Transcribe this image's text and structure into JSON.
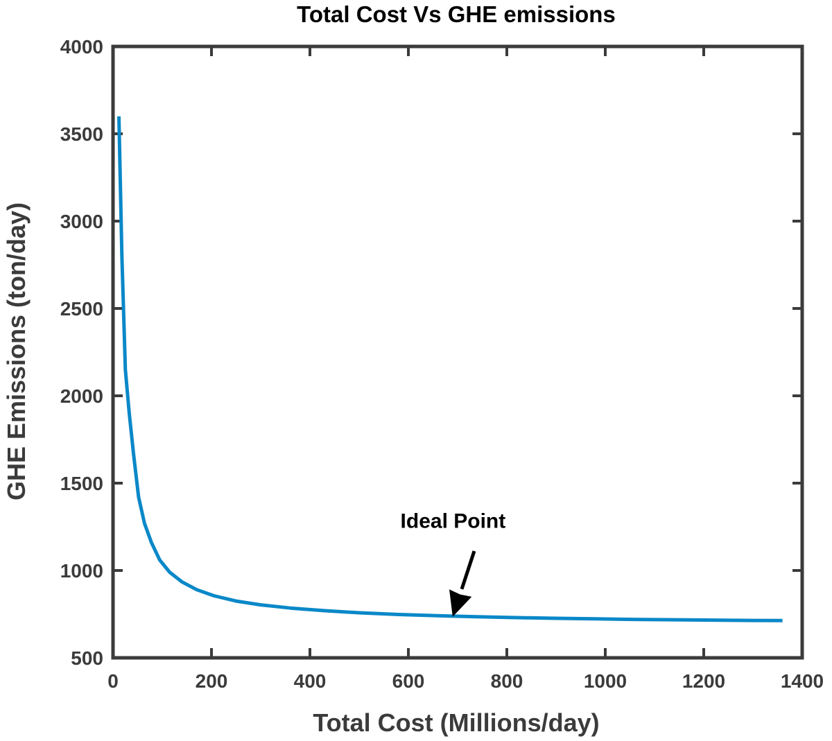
{
  "chart_data": {
    "type": "line",
    "title": "Total Cost Vs GHE emissions",
    "xlabel": "Total Cost (Millions/day)",
    "ylabel": "GHE Emissions (ton/day)",
    "xlim": [
      0,
      1400
    ],
    "ylim": [
      500,
      4000
    ],
    "x_ticks": [
      0,
      200,
      400,
      600,
      800,
      1000,
      1200,
      1400
    ],
    "y_ticks": [
      500,
      1000,
      1500,
      2000,
      2500,
      3000,
      3500,
      4000
    ],
    "grid": false,
    "legend": "none",
    "series": [
      {
        "color": "#0a88c8",
        "x": [
          12,
          18,
          25,
          33,
          42,
          52,
          64,
          78,
          95,
          115,
          140,
          170,
          205,
          250,
          300,
          360,
          430,
          500,
          580,
          660,
          740,
          820,
          900,
          980,
          1060,
          1140,
          1220,
          1300,
          1360
        ],
        "y": [
          3600,
          2800,
          2150,
          1900,
          1660,
          1420,
          1270,
          1160,
          1060,
          990,
          935,
          890,
          855,
          825,
          803,
          785,
          770,
          758,
          748,
          741,
          735,
          730,
          726,
          723,
          720,
          718,
          716,
          714,
          713
        ]
      }
    ],
    "annotations": [
      {
        "text": "Ideal Point",
        "x": 690,
        "y": 735,
        "text_x": 740,
        "text_y": 1245
      }
    ],
    "colors": {
      "line": "#0a88c8",
      "axes": "#3b3b3b",
      "annotation": "#000000"
    }
  }
}
